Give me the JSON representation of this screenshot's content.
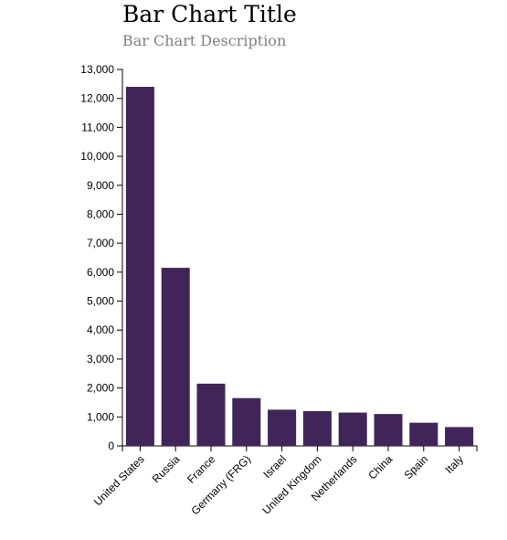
{
  "header": {
    "title": "Bar Chart Title",
    "subtitle": "Bar Chart Description"
  },
  "colors": {
    "bar": "#41255a",
    "axis": "#000000"
  },
  "chart_data": {
    "type": "bar",
    "title": "Bar Chart Title",
    "subtitle": "Bar Chart Description",
    "categories": [
      "United States",
      "Russia",
      "France",
      "Germany (FRG)",
      "Israel",
      "United Kingdom",
      "Netherlands",
      "China",
      "Spain",
      "Italy"
    ],
    "values": [
      12400,
      6150,
      2150,
      1650,
      1250,
      1200,
      1150,
      1100,
      800,
      650
    ],
    "ylim": [
      0,
      13000
    ],
    "yticks": [
      0,
      1000,
      2000,
      3000,
      4000,
      5000,
      6000,
      7000,
      8000,
      9000,
      10000,
      11000,
      12000,
      13000
    ],
    "ytick_labels": [
      "0",
      "1,000",
      "2,000",
      "3,000",
      "4,000",
      "5,000",
      "6,000",
      "7,000",
      "8,000",
      "9,000",
      "10,000",
      "11,000",
      "12,000",
      "13,000"
    ],
    "grid": false,
    "xlabel": "",
    "ylabel": ""
  }
}
